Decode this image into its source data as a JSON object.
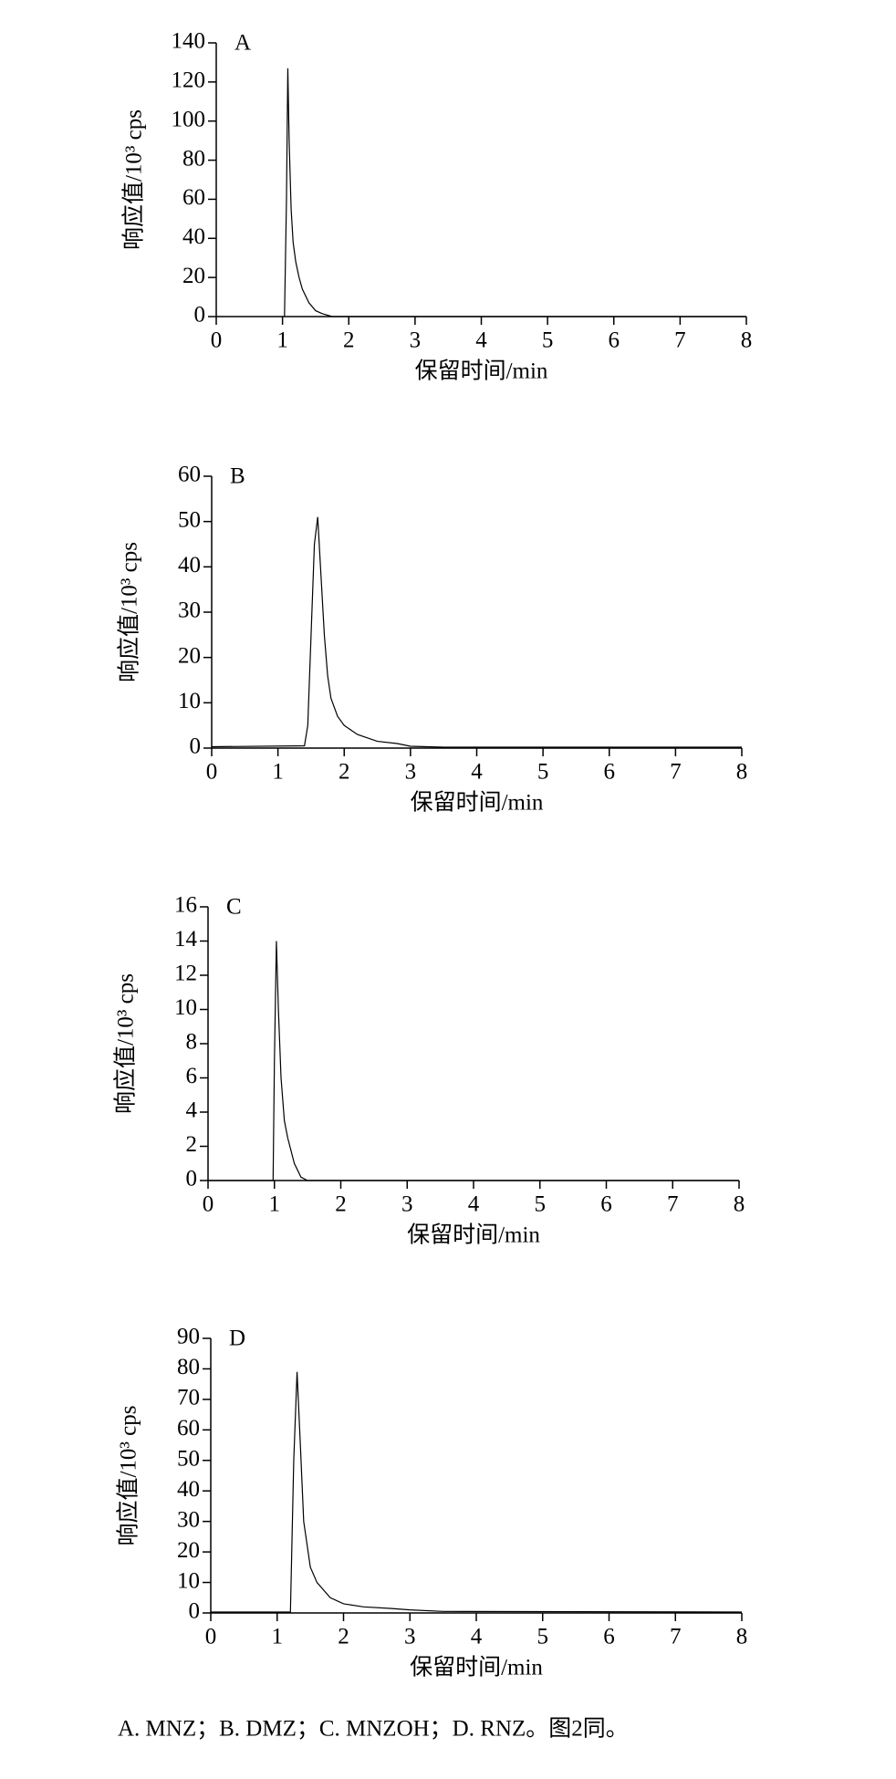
{
  "chart_data": [
    {
      "type": "line",
      "label": "A",
      "ylabel": "响应值/10³ cps",
      "xlabel": "保留时间/min",
      "color": "#000000",
      "x": [
        1.03,
        1.06,
        1.08,
        1.1,
        1.13,
        1.16,
        1.2,
        1.25,
        1.3,
        1.4,
        1.5,
        1.6,
        1.75,
        8
      ],
      "values": [
        0,
        60,
        127,
        90,
        55,
        38,
        28,
        20,
        14,
        7,
        3,
        1.5,
        0,
        0
      ],
      "xlim": [
        0,
        8
      ],
      "xticks": [
        0,
        1,
        2,
        3,
        4,
        5,
        6,
        7,
        8
      ],
      "ylim": [
        0,
        140
      ],
      "yticks": [
        0,
        20,
        40,
        60,
        80,
        100,
        120,
        140
      ]
    },
    {
      "type": "line",
      "label": "B",
      "ylabel": "响应值/10³ cps",
      "xlabel": "保留时间/min",
      "color": "#000000",
      "x": [
        0,
        1.4,
        1.45,
        1.5,
        1.55,
        1.6,
        1.65,
        1.7,
        1.75,
        1.8,
        1.9,
        2,
        2.2,
        2.5,
        2.8,
        3,
        3.5,
        8
      ],
      "values": [
        0.3,
        0.5,
        5,
        25,
        45,
        51,
        38,
        25,
        16,
        11,
        7,
        5,
        3,
        1.5,
        1,
        0.4,
        0.2,
        0.2
      ],
      "xlim": [
        0,
        8
      ],
      "xticks": [
        0,
        1,
        2,
        3,
        4,
        5,
        6,
        7,
        8
      ],
      "ylim": [
        0,
        60
      ],
      "yticks": [
        0,
        10,
        20,
        30,
        40,
        50,
        60
      ]
    },
    {
      "type": "line",
      "label": "C",
      "ylabel": "响应值/10³ cps",
      "xlabel": "保留时间/min",
      "color": "#000000",
      "x": [
        0,
        0.98,
        1.0,
        1.03,
        1.06,
        1.1,
        1.15,
        1.2,
        1.3,
        1.4,
        1.5,
        8
      ],
      "values": [
        0,
        0,
        7,
        14,
        10,
        6,
        3.5,
        2.5,
        1,
        0.2,
        0,
        0
      ],
      "xlim": [
        0,
        8
      ],
      "xticks": [
        0,
        1,
        2,
        3,
        4,
        5,
        6,
        7,
        8
      ],
      "ylim": [
        0,
        16
      ],
      "yticks": [
        0,
        2,
        4,
        6,
        8,
        10,
        12,
        14,
        16
      ]
    },
    {
      "type": "line",
      "label": "D",
      "ylabel": "响应值/10³ cps",
      "xlabel": "保留时间/min",
      "color": "#000000",
      "x": [
        0,
        1.2,
        1.25,
        1.3,
        1.35,
        1.4,
        1.5,
        1.6,
        1.8,
        2,
        2.3,
        2.7,
        3,
        3.5,
        8
      ],
      "values": [
        0.3,
        0.3,
        50,
        79,
        55,
        30,
        15,
        10,
        5,
        3,
        2,
        1.5,
        1,
        0.5,
        0.3
      ],
      "xlim": [
        0,
        8
      ],
      "xticks": [
        0,
        1,
        2,
        3,
        4,
        5,
        6,
        7,
        8
      ],
      "ylim": [
        0,
        90
      ],
      "yticks": [
        0,
        10,
        20,
        30,
        40,
        50,
        60,
        70,
        80,
        90
      ]
    }
  ],
  "caption": "A. MNZ；B. DMZ；C. MNZOH；D. RNZ。图2同。"
}
